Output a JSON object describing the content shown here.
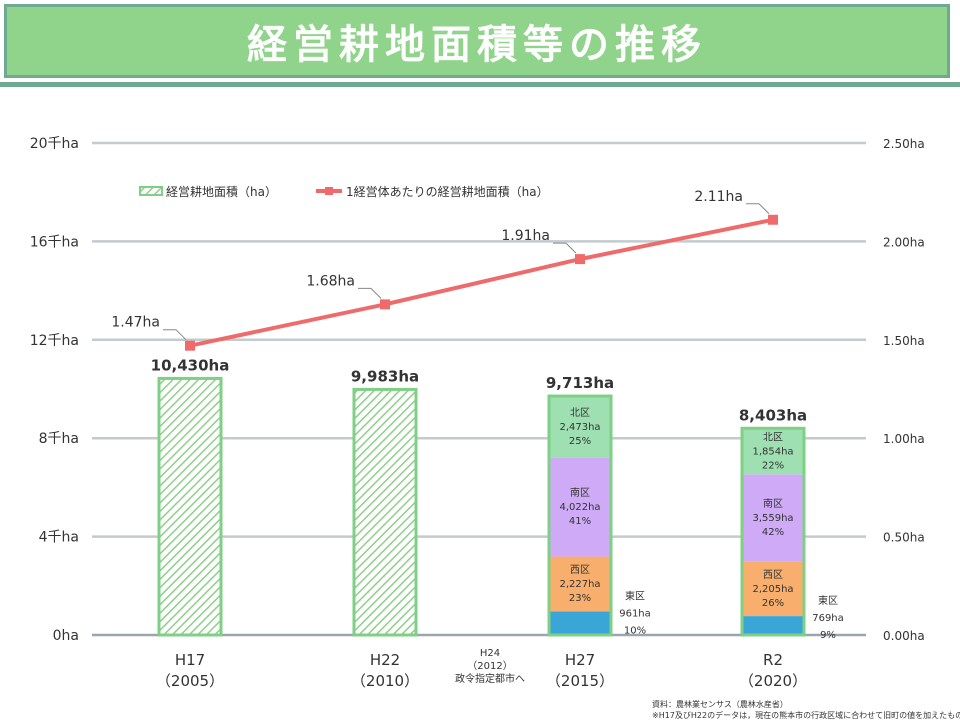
{
  "title": "経営耕地面積等の推移",
  "chart_data": {
    "type": "bar+line",
    "title": "経営耕地面積等の推移",
    "categories": [
      {
        "main": "H17",
        "sub": "（2005）"
      },
      {
        "main": "H22",
        "sub": "（2010）"
      },
      {
        "main": "H27",
        "sub": "（2015）"
      },
      {
        "main": "R2",
        "sub": "（2020）"
      }
    ],
    "annotation": {
      "lines": [
        "H24",
        "（2012）",
        "政令指定都市へ"
      ]
    },
    "y_left": {
      "min": 0,
      "max": 20000,
      "ticks": [
        0,
        4000,
        8000,
        12000,
        16000,
        20000
      ],
      "tick_labels": [
        "0ha",
        "4千ha",
        "8千ha",
        "12千ha",
        "16千ha",
        "20千ha"
      ]
    },
    "y_right": {
      "min": 0,
      "max": 2.5,
      "ticks": [
        0,
        0.5,
        1.0,
        1.5,
        2.0,
        2.5
      ],
      "tick_labels": [
        "0.00ha",
        "0.50ha",
        "1.00ha",
        "1.50ha",
        "2.00ha",
        "2.50ha"
      ]
    },
    "legend": {
      "bar": "経営耕地面積（ha）",
      "line": "1経営体あたりの経営耕地面積（ha）",
      "position": "top-left"
    },
    "totals": [
      10430,
      9983,
      9713,
      8403
    ],
    "total_labels": [
      "10,430ha",
      "9,983ha",
      "9,713ha",
      "8,403ha"
    ],
    "stacks": [
      null,
      null,
      [
        {
          "district": "東区",
          "value": 961,
          "label": "961ha",
          "pct": "10%",
          "color": "#3aa6d8"
        },
        {
          "district": "西区",
          "value": 2227,
          "label": "2,227ha",
          "pct": "23%",
          "color": "#f8ae6c"
        },
        {
          "district": "南区",
          "value": 4022,
          "label": "4,022ha",
          "pct": "41%",
          "color": "#cfaaf6"
        },
        {
          "district": "北区",
          "value": 2473,
          "label": "2,473ha",
          "pct": "25%",
          "color": "#9fe0b2"
        }
      ],
      [
        {
          "district": "東区",
          "value": 769,
          "label": "769ha",
          "pct": "9%",
          "color": "#3aa6d8"
        },
        {
          "district": "西区",
          "value": 2205,
          "label": "2,205ha",
          "pct": "26%",
          "color": "#f8ae6c"
        },
        {
          "district": "南区",
          "value": 3559,
          "label": "3,559ha",
          "pct": "42%",
          "color": "#cfaaf6"
        },
        {
          "district": "北区",
          "value": 1854,
          "label": "1,854ha",
          "pct": "22%",
          "color": "#9fe0b2"
        }
      ]
    ],
    "line": {
      "values": [
        1.47,
        1.68,
        1.91,
        2.11
      ],
      "labels": [
        "1.47ha",
        "1.68ha",
        "1.91ha",
        "2.11ha"
      ],
      "color": "#ef6b6b"
    },
    "bar_border_color": "#7fcf85",
    "hatch_color": "#8fcf8a"
  },
  "source": {
    "line1": "資料：農林業センサス（農林水産省）",
    "line2": "※H17及びH22のデータは，現在の熊本市の行政区域に合わせて旧町の値を加えたもの"
  }
}
